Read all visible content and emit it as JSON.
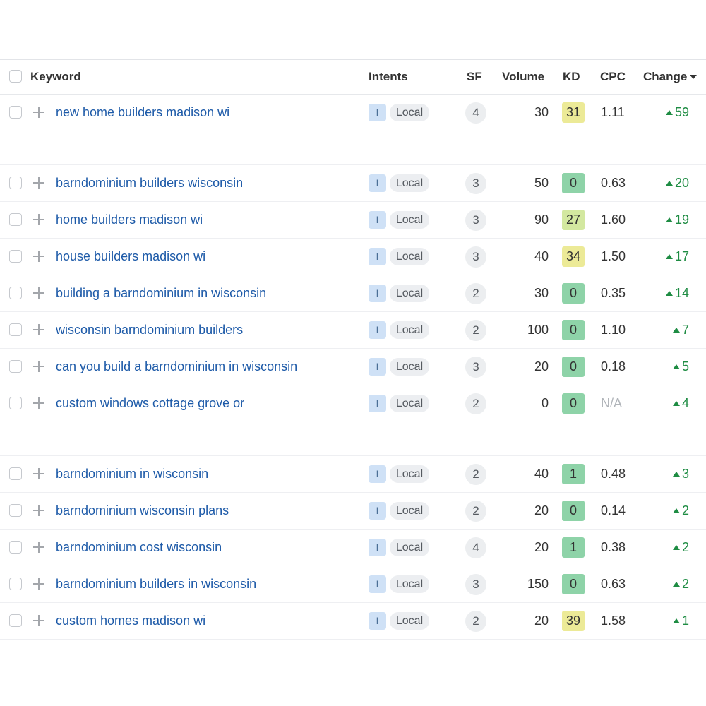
{
  "table": {
    "headers": {
      "keyword": "Keyword",
      "intents": "Intents",
      "sf": "SF",
      "volume": "Volume",
      "kd": "KD",
      "cpc": "CPC",
      "change": "Change"
    },
    "sort": {
      "column": "change",
      "direction": "descending"
    },
    "kd_colors": {
      "easy": "#8ed3a8",
      "possible": "#d3e8a0",
      "medium": "#ecea97"
    },
    "change_color": "#1e8c43",
    "keyword_color": "#1d5aa8",
    "rows": [
      {
        "keyword": "new home builders madison wi",
        "intent": "I",
        "tag": "Local",
        "sf": "4",
        "volume": "30",
        "kd": "31",
        "kd_level": "medium",
        "cpc": "1.11",
        "change": "59"
      },
      {
        "keyword": "barndominium builders wisconsin",
        "intent": "I",
        "tag": "Local",
        "sf": "3",
        "volume": "50",
        "kd": "0",
        "kd_level": "easy",
        "cpc": "0.63",
        "change": "20"
      },
      {
        "keyword": "home builders madison wi",
        "intent": "I",
        "tag": "Local",
        "sf": "3",
        "volume": "90",
        "kd": "27",
        "kd_level": "possible",
        "cpc": "1.60",
        "change": "19"
      },
      {
        "keyword": "house builders madison wi",
        "intent": "I",
        "tag": "Local",
        "sf": "3",
        "volume": "40",
        "kd": "34",
        "kd_level": "medium",
        "cpc": "1.50",
        "change": "17"
      },
      {
        "keyword": "building a barndominium in wisconsin",
        "intent": "I",
        "tag": "Local",
        "sf": "2",
        "volume": "30",
        "kd": "0",
        "kd_level": "easy",
        "cpc": "0.35",
        "change": "14"
      },
      {
        "keyword": "wisconsin barndominium builders",
        "intent": "I",
        "tag": "Local",
        "sf": "2",
        "volume": "100",
        "kd": "0",
        "kd_level": "easy",
        "cpc": "1.10",
        "change": "7"
      },
      {
        "keyword": "can you build a barndominium in wisconsin",
        "intent": "I",
        "tag": "Local",
        "sf": "3",
        "volume": "20",
        "kd": "0",
        "kd_level": "easy",
        "cpc": "0.18",
        "change": "5"
      },
      {
        "keyword": "custom windows cottage grove or",
        "intent": "I",
        "tag": "Local",
        "sf": "2",
        "volume": "0",
        "kd": "0",
        "kd_level": "easy",
        "cpc": "N/A",
        "change": "4"
      },
      {
        "keyword": "barndominium in wisconsin",
        "intent": "I",
        "tag": "Local",
        "sf": "2",
        "volume": "40",
        "kd": "1",
        "kd_level": "easy",
        "cpc": "0.48",
        "change": "3"
      },
      {
        "keyword": "barndominium wisconsin plans",
        "intent": "I",
        "tag": "Local",
        "sf": "2",
        "volume": "20",
        "kd": "0",
        "kd_level": "easy",
        "cpc": "0.14",
        "change": "2"
      },
      {
        "keyword": "barndominium cost wisconsin",
        "intent": "I",
        "tag": "Local",
        "sf": "4",
        "volume": "20",
        "kd": "1",
        "kd_level": "easy",
        "cpc": "0.38",
        "change": "2"
      },
      {
        "keyword": "barndominium builders in wisconsin",
        "intent": "I",
        "tag": "Local",
        "sf": "3",
        "volume": "150",
        "kd": "0",
        "kd_level": "easy",
        "cpc": "0.63",
        "change": "2"
      },
      {
        "keyword": "custom homes madison wi",
        "intent": "I",
        "tag": "Local",
        "sf": "2",
        "volume": "20",
        "kd": "39",
        "kd_level": "medium",
        "cpc": "1.58",
        "change": "1"
      }
    ]
  }
}
